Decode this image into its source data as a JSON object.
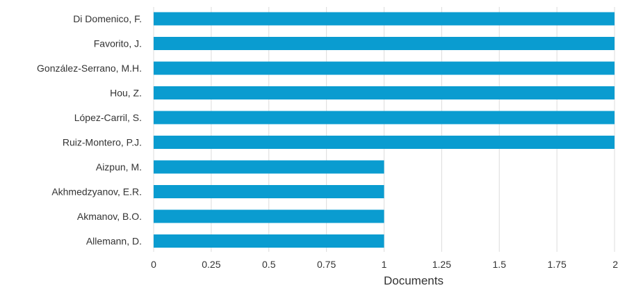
{
  "chart_data": {
    "type": "bar",
    "orientation": "horizontal",
    "categories": [
      "Di Domenico, F.",
      "Favorito, J.",
      "González-Serrano, M.H.",
      "Hou, Z.",
      "López-Carril, S.",
      "Ruiz-Montero, P.J.",
      "Aizpun, M.",
      "Akhmedzyanov, E.R.",
      "Akmanov, B.O.",
      "Allemann, D."
    ],
    "values": [
      2,
      2,
      2,
      2,
      2,
      2,
      1,
      1,
      1,
      1
    ],
    "xlabel": "Documents",
    "ylabel": "",
    "title": "",
    "xlim": [
      0,
      2
    ],
    "x_ticks": [
      "0",
      "0.25",
      "0.5",
      "0.75",
      "1",
      "1.25",
      "1.5",
      "1.75",
      "2"
    ],
    "grid": "vertical",
    "bar_color": "#0a9cd0",
    "grid_color": "#dcdcdc"
  }
}
